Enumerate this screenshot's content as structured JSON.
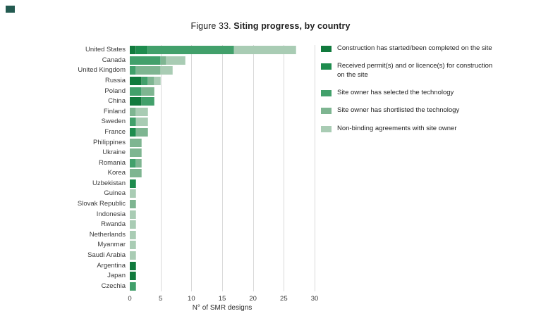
{
  "title": {
    "prefix": "Figure 33.",
    "main": " Siting progress, by country"
  },
  "chart_data": {
    "type": "bar",
    "orientation": "horizontal",
    "stacked": true,
    "title": "Figure 33. Siting progress, by country",
    "xlabel": "N° of SMR designs",
    "ylabel": "",
    "xlim": [
      0,
      30
    ],
    "xticks": [
      0,
      5,
      10,
      15,
      20,
      25,
      30
    ],
    "grid": true,
    "legend_position": "right",
    "categories": [
      "United States",
      "Canada",
      "United Kingdom",
      "Russia",
      "Poland",
      "China",
      "Finland",
      "Sweden",
      "France",
      "Philippines",
      "Ukraine",
      "Romania",
      "Korea",
      "Uzbekistan",
      "Guinea",
      "Slovak Republic",
      "Indonesia",
      "Rwanda",
      "Netherlands",
      "Myanmar",
      "Saudi Arabia",
      "Argentina",
      "Japan",
      "Czechia"
    ],
    "series": [
      {
        "name": "Construction has started/been completed on the site",
        "color": "#117a3d",
        "values": [
          1,
          0,
          0,
          2,
          0,
          2,
          0,
          0,
          0,
          0,
          0,
          0,
          0,
          0,
          0,
          0,
          0,
          0,
          0,
          0,
          0,
          1,
          1,
          0
        ]
      },
      {
        "name": "Received permit(s) and or licence(s) for construction on the site",
        "color": "#1e8c4e",
        "values": [
          2,
          0,
          0,
          0,
          0,
          0,
          0,
          0,
          1,
          0,
          0,
          0,
          0,
          1,
          0,
          0,
          0,
          0,
          0,
          0,
          0,
          0,
          0,
          0
        ]
      },
      {
        "name": "Site owner has selected the technology",
        "color": "#42a06b",
        "values": [
          14,
          5,
          1,
          1,
          2,
          2,
          0,
          1,
          0,
          0,
          0,
          1,
          0,
          0,
          0,
          0,
          0,
          0,
          0,
          0,
          0,
          0,
          0,
          1
        ]
      },
      {
        "name": "Site owner has shortlisted the technology",
        "color": "#7eb591",
        "values": [
          0,
          1,
          4,
          1,
          2,
          0,
          1,
          0,
          2,
          2,
          2,
          1,
          2,
          0,
          0,
          1,
          0,
          0,
          0,
          0,
          0,
          0,
          0,
          0
        ]
      },
      {
        "name": "Non-binding agreements with site owner",
        "color": "#a9ccb4",
        "values": [
          10,
          3,
          2,
          1,
          0,
          0,
          2,
          2,
          0,
          0,
          0,
          0,
          0,
          0,
          1,
          0,
          1,
          1,
          1,
          1,
          1,
          0,
          0,
          0
        ]
      }
    ]
  }
}
